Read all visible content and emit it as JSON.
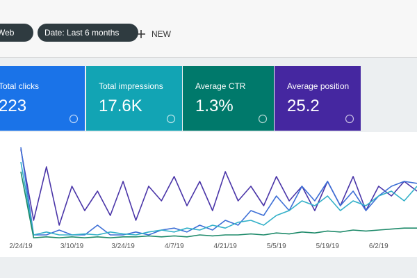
{
  "toolbar": {
    "chips": [
      "Web",
      "Date: Last 6 months"
    ],
    "new_button": "NEW"
  },
  "cards": [
    {
      "label": "Total clicks",
      "value": "223",
      "color": "#1a73e8"
    },
    {
      "label": "Total impressions",
      "value": "17.6K",
      "color": "#12a4b4"
    },
    {
      "label": "Average CTR",
      "value": "1.3%",
      "color": "#00796b"
    },
    {
      "label": "Average position",
      "value": "25.2",
      "color": "#4527a0"
    }
  ],
  "chart": {
    "type": "line",
    "categories": [
      "2/24/19",
      null,
      null,
      null,
      "3/10/19",
      null,
      null,
      null,
      "3/24/19",
      null,
      null,
      null,
      "4/7/19",
      null,
      null,
      null,
      "4/21/19",
      null,
      null,
      null,
      "5/5/19",
      null,
      null,
      null,
      "5/19/19",
      null,
      null,
      null,
      "6/2/19",
      null,
      null,
      null
    ],
    "series": [
      {
        "color": "#4a35a8",
        "values": [
          93,
          20,
          75,
          15,
          55,
          30,
          50,
          25,
          60,
          20,
          55,
          40,
          65,
          35,
          60,
          30,
          70,
          40,
          55,
          35,
          65,
          40,
          55,
          30,
          60,
          35,
          65,
          30,
          55,
          45,
          60,
          50
        ]
      },
      {
        "color": "#3d6fd6",
        "values": [
          95,
          5,
          5,
          10,
          5,
          5,
          15,
          5,
          5,
          8,
          5,
          10,
          12,
          8,
          15,
          10,
          20,
          15,
          30,
          25,
          45,
          30,
          55,
          40,
          60,
          35,
          50,
          30,
          45,
          55,
          60,
          58
        ]
      },
      {
        "color": "#32b0c8",
        "values": [
          80,
          5,
          8,
          5,
          5,
          6,
          5,
          8,
          6,
          5,
          8,
          10,
          8,
          12,
          10,
          15,
          12,
          18,
          20,
          15,
          25,
          30,
          40,
          35,
          45,
          30,
          40,
          35,
          45,
          50,
          40,
          55
        ]
      },
      {
        "color": "#1e8a6a",
        "values": [
          70,
          2,
          3,
          2,
          3,
          2,
          3,
          2,
          3,
          3,
          4,
          3,
          4,
          3,
          5,
          4,
          5,
          5,
          6,
          5,
          7,
          6,
          8,
          7,
          9,
          8,
          10,
          9,
          10,
          11,
          12,
          12
        ]
      }
    ]
  }
}
